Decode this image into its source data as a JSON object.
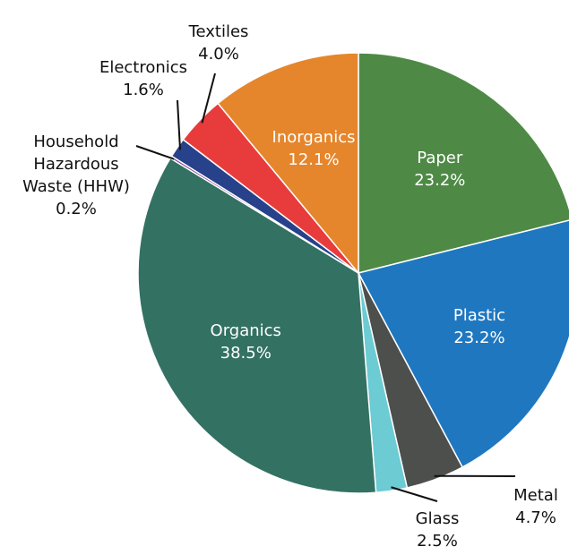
{
  "chart_data": {
    "type": "pie",
    "categories": [
      "Paper",
      "Plastic",
      "Metal",
      "Glass",
      "Organics",
      "Household Hazardous Waste (HHW)",
      "Electronics",
      "Textiles",
      "Inorganics"
    ],
    "values": [
      23.2,
      23.2,
      4.7,
      2.5,
      38.5,
      0.2,
      1.6,
      4.0,
      12.1
    ],
    "value_labels": [
      "23.2%",
      "23.2%",
      "4.7%",
      "2.5%",
      "38.5%",
      "0.2%",
      "1.6%",
      "4.0%",
      "12.1%"
    ],
    "colors": [
      "#4e8a45",
      "#1f77c0",
      "#4d4f4c",
      "#6ccbd3",
      "#337163",
      "#7b3f9a",
      "#27418a",
      "#e83c3c",
      "#e5862c"
    ]
  }
}
